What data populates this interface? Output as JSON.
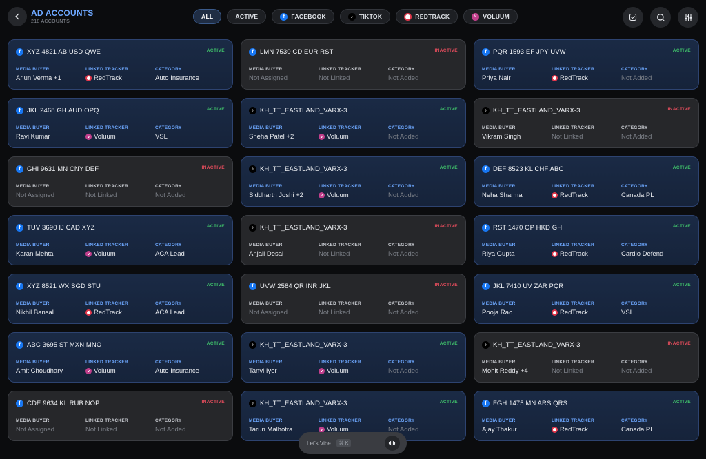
{
  "header": {
    "title": "AD ACCOUNTS",
    "subtitle": "218 ACCOUNTS",
    "filters": [
      {
        "label": "ALL",
        "icon": "",
        "active": true
      },
      {
        "label": "ACTIVE",
        "icon": "",
        "active": false
      },
      {
        "label": "FACEBOOK",
        "icon": "facebook-icon",
        "active": false
      },
      {
        "label": "TIKTOK",
        "icon": "tiktok-icon",
        "active": false
      },
      {
        "label": "REDTRACK",
        "icon": "redtrack-icon",
        "active": false
      },
      {
        "label": "VOLUUM",
        "icon": "voluum-icon",
        "active": false
      }
    ],
    "actions": [
      "check-square-icon",
      "search-icon",
      "sliders-icon"
    ]
  },
  "field_labels": {
    "buyer": "MEDIA BUYER",
    "tracker": "LINKED TRACKER",
    "category": "CATEGORY"
  },
  "colors": {
    "accent": "#6ea8ff",
    "active": "#3fbf6a",
    "inactive": "#e34c5c"
  },
  "cards": [
    {
      "platform": "facebook",
      "name": "XYZ 4821 AB USD QWE",
      "status": "ACTIVE",
      "buyer": "Arjun Verma +1",
      "tracker": "RedTrack",
      "category": "Auto Insurance"
    },
    {
      "platform": "facebook",
      "name": "LMN 7530 CD EUR RST",
      "status": "INACTIVE",
      "buyer": "Not Assigned",
      "tracker": "Not Linked",
      "category": "Not Added"
    },
    {
      "platform": "facebook",
      "name": "PQR 1593 EF JPY UVW",
      "status": "ACTIVE",
      "buyer": "Priya Nair",
      "tracker": "RedTrack",
      "category": "Not Added"
    },
    {
      "platform": "facebook",
      "name": "JKL 2468 GH AUD OPQ",
      "status": "ACTIVE",
      "buyer": "Ravi Kumar",
      "tracker": "Voluum",
      "category": "VSL"
    },
    {
      "platform": "tiktok",
      "name": "KH_TT_EASTLAND_VARX-3",
      "status": "ACTIVE",
      "buyer": "Sneha Patel +2",
      "tracker": "Voluum",
      "category": "Not Added"
    },
    {
      "platform": "tiktok",
      "name": "KH_TT_EASTLAND_VARX-3",
      "status": "INACTIVE",
      "buyer": "Vikram Singh",
      "tracker": "Not Linked",
      "category": "Not Added"
    },
    {
      "platform": "facebook",
      "name": "GHI 9631 MN CNY DEF",
      "status": "INACTIVE",
      "buyer": "Not Assigned",
      "tracker": "Not Linked",
      "category": "Not Added"
    },
    {
      "platform": "tiktok",
      "name": "KH_TT_EASTLAND_VARX-3",
      "status": "ACTIVE",
      "buyer": "Siddharth Joshi +2",
      "tracker": "Voluum",
      "category": "Not Added"
    },
    {
      "platform": "facebook",
      "name": "DEF 8523 KL CHF ABC",
      "status": "ACTIVE",
      "buyer": "Neha Sharma",
      "tracker": "RedTrack",
      "category": "Canada PL"
    },
    {
      "platform": "facebook",
      "name": "TUV 3690 IJ CAD XYZ",
      "status": "ACTIVE",
      "buyer": "Karan Mehta",
      "tracker": "Voluum",
      "category": "ACA Lead"
    },
    {
      "platform": "tiktok",
      "name": "KH_TT_EASTLAND_VARX-3",
      "status": "INACTIVE",
      "buyer": "Anjali Desai",
      "tracker": "Not Linked",
      "category": "Not Added"
    },
    {
      "platform": "facebook",
      "name": "RST 1470 OP HKD GHI",
      "status": "ACTIVE",
      "buyer": "Riya Gupta",
      "tracker": "RedTrack",
      "category": "Cardio Defend"
    },
    {
      "platform": "facebook",
      "name": "XYZ 8521 WX SGD STU",
      "status": "ACTIVE",
      "buyer": "Nikhil Bansal",
      "tracker": "RedTrack",
      "category": "ACA Lead"
    },
    {
      "platform": "facebook",
      "name": "UVW 2584 QR INR JKL",
      "status": "INACTIVE",
      "buyer": "Not Assigned",
      "tracker": "Not Linked",
      "category": "Not Added"
    },
    {
      "platform": "facebook",
      "name": "JKL 7410 UV ZAR PQR",
      "status": "ACTIVE",
      "buyer": "Pooja Rao",
      "tracker": "RedTrack",
      "category": "VSL"
    },
    {
      "platform": "facebook",
      "name": "ABC 3695 ST MXN MNO",
      "status": "ACTIVE",
      "buyer": "Amit Choudhary",
      "tracker": "Voluum",
      "category": "Auto Insurance"
    },
    {
      "platform": "tiktok",
      "name": "KH_TT_EASTLAND_VARX-3",
      "status": "ACTIVE",
      "buyer": "Tanvi Iyer",
      "tracker": "Voluum",
      "category": "Not Added"
    },
    {
      "platform": "tiktok",
      "name": "KH_TT_EASTLAND_VARX-3",
      "status": "INACTIVE",
      "buyer": "Mohit Reddy +4",
      "tracker": "Not Linked",
      "category": "Not Added"
    },
    {
      "platform": "facebook",
      "name": "CDE 9634 KL RUB NOP",
      "status": "INACTIVE",
      "buyer": "Not Assigned",
      "tracker": "Not Linked",
      "category": "Not Added"
    },
    {
      "platform": "tiktok",
      "name": "KH_TT_EASTLAND_VARX-3",
      "status": "ACTIVE",
      "buyer": "Tarun Malhotra",
      "tracker": "Voluum",
      "category": "Not Added"
    },
    {
      "platform": "facebook",
      "name": "FGH 1475 MN ARS QRS",
      "status": "ACTIVE",
      "buyer": "Ajay Thakur",
      "tracker": "RedTrack",
      "category": "Canada PL"
    }
  ],
  "vibe": {
    "label": "Let's Vibe",
    "shortcut": "⌘ K"
  }
}
